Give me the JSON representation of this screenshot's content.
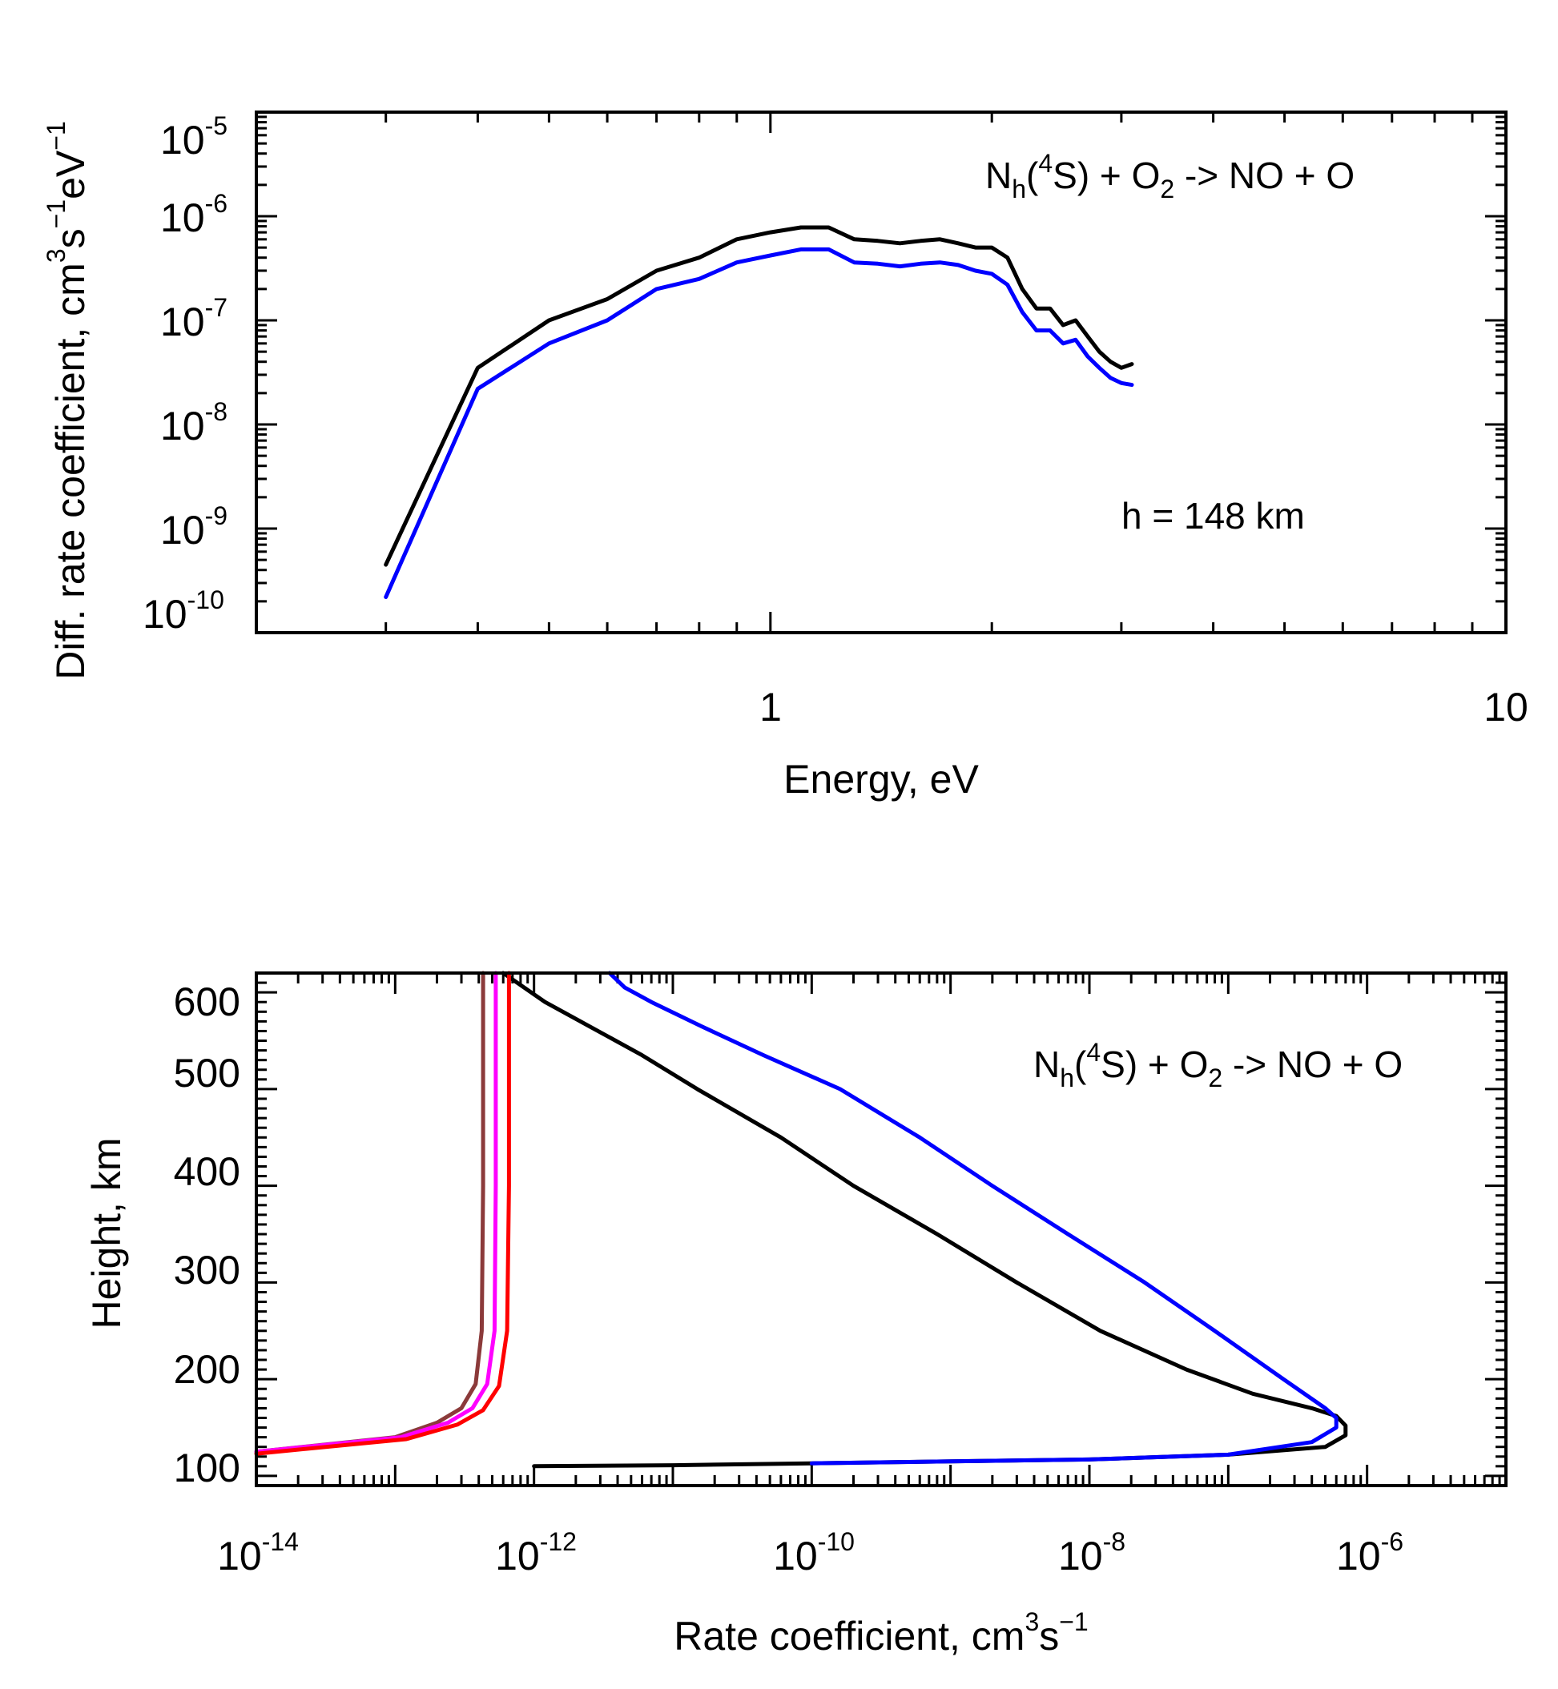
{
  "chart_data": [
    {
      "type": "line",
      "xscale": "log",
      "yscale": "log",
      "xlim": [
        0.2,
        10
      ],
      "ylim": [
        1e-10,
        1e-05
      ],
      "xlabel": "Energy, eV",
      "ylabel_parts": {
        "base": "Diff. rate coefficient, cm",
        "exp1": "3",
        "mid1": "s",
        "exp2": "−1",
        "mid2": "eV",
        "exp3": "−1"
      },
      "x_tick_labels": [
        {
          "value": 1,
          "label": "1"
        },
        {
          "value": 10,
          "label": "10"
        }
      ],
      "y_tick_labels": [
        {
          "value": 1e-05,
          "base": "10",
          "exp": "-5"
        },
        {
          "value": 1e-06,
          "base": "10",
          "exp": "-6"
        },
        {
          "value": 1e-07,
          "base": "10",
          "exp": "-7"
        },
        {
          "value": 1e-08,
          "base": "10",
          "exp": "-8"
        },
        {
          "value": 1e-09,
          "base": "10",
          "exp": "-9"
        },
        {
          "value": 1e-10,
          "base": "10",
          "exp": "-10"
        }
      ],
      "reaction": {
        "n": "N",
        "n_sub": "h",
        "open": "(",
        "state_sup": "4",
        "state": "S) + O",
        "o2_sub": "2",
        "rest": " -> NO + O"
      },
      "altitude_label": "h = 148 km",
      "series": [
        {
          "name": "black",
          "color": "#000000",
          "x": [
            0.3,
            0.4,
            0.5,
            0.6,
            0.7,
            0.8,
            0.9,
            1.0,
            1.1,
            1.2,
            1.3,
            1.4,
            1.5,
            1.6,
            1.7,
            1.8,
            1.9,
            2.0,
            2.1,
            2.2,
            2.3,
            2.4,
            2.5,
            2.6,
            2.7,
            2.8,
            2.9,
            3.0,
            3.1
          ],
          "y": [
            4.5e-10,
            3.5e-08,
            1e-07,
            1.6e-07,
            3e-07,
            4e-07,
            6e-07,
            7e-07,
            7.8e-07,
            7.8e-07,
            6e-07,
            5.8e-07,
            5.5e-07,
            5.8e-07,
            6e-07,
            5.5e-07,
            5e-07,
            5e-07,
            4e-07,
            2e-07,
            1.3e-07,
            1.3e-07,
            9e-08,
            1e-07,
            7e-08,
            5e-08,
            4e-08,
            3.5e-08,
            3.8e-08
          ]
        },
        {
          "name": "blue",
          "color": "#0000ff",
          "x": [
            0.3,
            0.4,
            0.5,
            0.6,
            0.7,
            0.8,
            0.9,
            1.0,
            1.1,
            1.2,
            1.3,
            1.4,
            1.5,
            1.6,
            1.7,
            1.8,
            1.9,
            2.0,
            2.1,
            2.2,
            2.3,
            2.4,
            2.5,
            2.6,
            2.7,
            2.8,
            2.9,
            3.0,
            3.1
          ],
          "y": [
            2.2e-10,
            2.2e-08,
            6e-08,
            1e-07,
            2e-07,
            2.5e-07,
            3.6e-07,
            4.2e-07,
            4.8e-07,
            4.8e-07,
            3.6e-07,
            3.5e-07,
            3.3e-07,
            3.5e-07,
            3.6e-07,
            3.4e-07,
            3e-07,
            2.8e-07,
            2.2e-07,
            1.2e-07,
            8e-08,
            8e-08,
            6e-08,
            6.5e-08,
            4.5e-08,
            3.5e-08,
            2.8e-08,
            2.5e-08,
            2.4e-08
          ]
        }
      ]
    },
    {
      "type": "line",
      "xscale": "log",
      "yscale": "linear",
      "xlim": [
        1e-14,
        1e-05
      ],
      "ylim": [
        90,
        620
      ],
      "ylabel": "Height, km",
      "xlabel_parts": {
        "base": "Rate coefficient, cm",
        "exp1": "3",
        "mid1": "s",
        "exp2": "−1"
      },
      "x_tick_labels": [
        {
          "value": 1e-14,
          "base": "10",
          "exp": "-14"
        },
        {
          "value": 1e-12,
          "base": "10",
          "exp": "-12"
        },
        {
          "value": 1e-10,
          "base": "10",
          "exp": "-10"
        },
        {
          "value": 1e-08,
          "base": "10",
          "exp": "-8"
        },
        {
          "value": 1e-06,
          "base": "10",
          "exp": "-6"
        }
      ],
      "y_tick_labels": [
        "100",
        "200",
        "300",
        "400",
        "500",
        "600"
      ],
      "y_tick_values": [
        100,
        200,
        300,
        400,
        500,
        600
      ],
      "reaction": {
        "n": "N",
        "n_sub": "h",
        "open": "(",
        "state_sup": "4",
        "state": "S) + O",
        "o2_sub": "2",
        "rest": " -> NO + O"
      },
      "series": [
        {
          "name": "black",
          "color": "#000000",
          "x": [
            1e-12,
            1e-11,
            1e-10,
            1e-09,
            1e-08,
            1e-07,
            5e-07,
            7e-07,
            7e-07,
            6e-07,
            4e-07,
            1.5e-07,
            5e-08,
            1.2e-08,
            3e-09,
            8e-10,
            2e-10,
            6e-11,
            1.5e-11,
            6e-12,
            2.5e-12,
            1.2e-12,
            6e-13
          ],
          "y": [
            110,
            111,
            113,
            115,
            117,
            122,
            130,
            142,
            152,
            162,
            170,
            185,
            210,
            250,
            300,
            350,
            400,
            450,
            500,
            535,
            565,
            590,
            620
          ]
        },
        {
          "name": "blue",
          "color": "#0000ff",
          "x": [
            1e-10,
            1e-09,
            1e-08,
            1e-07,
            4e-07,
            6e-07,
            6e-07,
            5e-07,
            2.5e-07,
            8e-08,
            2.5e-08,
            7e-09,
            2e-09,
            6e-10,
            1.6e-10,
            4.5e-11,
            1.6e-11,
            7e-12,
            4.5e-12,
            3.5e-12
          ],
          "y": [
            113,
            115,
            117,
            122,
            135,
            150,
            160,
            170,
            200,
            250,
            300,
            350,
            400,
            450,
            500,
            535,
            565,
            590,
            605,
            620
          ]
        },
        {
          "name": "brown",
          "color": "#8b3a3a",
          "x": [
            1e-14,
            1e-13,
            2e-13,
            3e-13,
            3.8e-13,
            4.2e-13,
            4.3e-13,
            4.3e-13
          ],
          "y": [
            125,
            140,
            155,
            170,
            195,
            250,
            400,
            620
          ]
        },
        {
          "name": "magenta",
          "color": "#ff00ff",
          "x": [
            1e-14,
            1.1e-13,
            2.4e-13,
            3.6e-13,
            4.6e-13,
            5.2e-13,
            5.3e-13,
            5.3e-13
          ],
          "y": [
            125,
            140,
            155,
            170,
            195,
            250,
            400,
            620
          ]
        },
        {
          "name": "red",
          "color": "#ff0000",
          "x": [
            1e-14,
            1.2e-13,
            2.8e-13,
            4.3e-13,
            5.6e-13,
            6.4e-13,
            6.6e-13,
            6.6e-13
          ],
          "y": [
            123,
            138,
            153,
            168,
            193,
            250,
            400,
            620
          ]
        }
      ]
    }
  ]
}
